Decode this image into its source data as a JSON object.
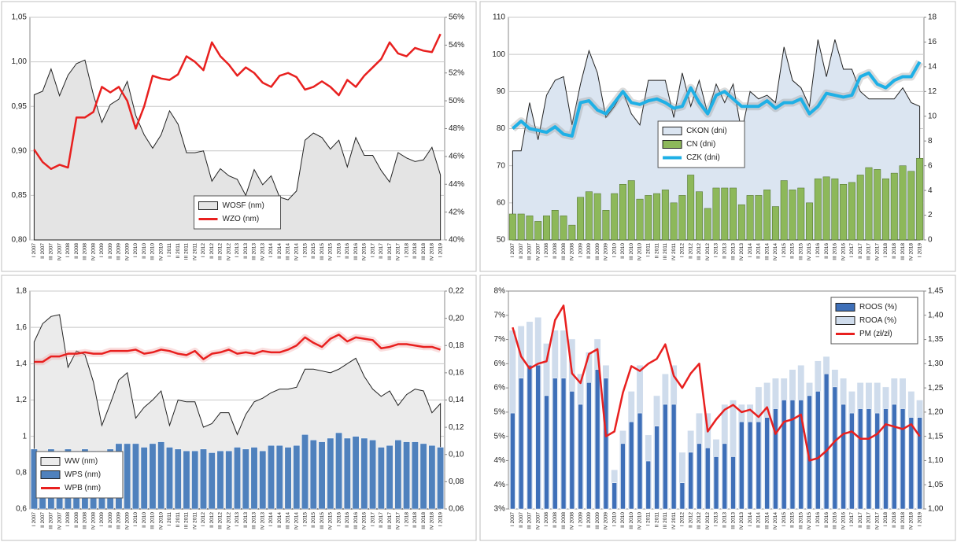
{
  "chart_data": [
    {
      "type": "combo",
      "legend": "bottom-center",
      "categories": [
        "I 2007",
        "II 2007",
        "III 2007",
        "IV 2007",
        "I 2008",
        "II 2008",
        "III 2008",
        "IV 2008",
        "I 2009",
        "II 2009",
        "III 2009",
        "IV 2009",
        "I 2010",
        "II 2010",
        "III 2010",
        "IV 2010",
        "I 2011",
        "II 2011",
        "III 2011",
        "IV 2011",
        "I 2012",
        "II 2012",
        "III 2012",
        "IV 2012",
        "I 2013",
        "II 2013",
        "III 2013",
        "IV 2013",
        "I 2014",
        "II 2014",
        "III 2014",
        "IV 2014",
        "I 2015",
        "II 2015",
        "III 2015",
        "IV 2015",
        "I 2016",
        "II 2016",
        "III 2016",
        "IV 2016",
        "I 2017",
        "II 2017",
        "III 2017",
        "IV 2017",
        "I 2018",
        "II 2018",
        "III 2018",
        "IV 2018",
        "I 2019"
      ],
      "ylim": [
        0.8,
        1.05
      ],
      "yticks": [
        {
          "value": 0.8,
          "label": "0,80"
        },
        {
          "value": 0.85,
          "label": "0,85"
        },
        {
          "value": 0.9,
          "label": "0,90"
        },
        {
          "value": 0.95,
          "label": "0,95"
        },
        {
          "value": 1.0,
          "label": "1,00"
        },
        {
          "value": 1.05,
          "label": "1,05"
        }
      ],
      "y2lim": [
        40,
        56
      ],
      "y2ticks": [
        {
          "value": 40,
          "label": "40%"
        },
        {
          "value": 42,
          "label": "42%"
        },
        {
          "value": 44,
          "label": "44%"
        },
        {
          "value": 46,
          "label": "46%"
        },
        {
          "value": 48,
          "label": "48%"
        },
        {
          "value": 50,
          "label": "50%"
        },
        {
          "value": 52,
          "label": "52%"
        },
        {
          "value": 54,
          "label": "54%"
        },
        {
          "value": 56,
          "label": "56%"
        }
      ],
      "grid": true,
      "series": [
        {
          "name": "WOSF (nm)",
          "type": "area",
          "color": "#e4e4e4",
          "values": [
            0.963,
            0.967,
            0.992,
            0.962,
            0.985,
            0.998,
            1.002,
            0.963,
            0.932,
            0.952,
            0.958,
            0.978,
            0.94,
            0.918,
            0.903,
            0.918,
            0.945,
            0.93,
            0.898,
            0.898,
            0.9,
            0.866,
            0.88,
            0.872,
            0.868,
            0.85,
            0.879,
            0.862,
            0.872,
            0.848,
            0.845,
            0.855,
            0.912,
            0.92,
            0.915,
            0.902,
            0.912,
            0.882,
            0.915,
            0.895,
            0.895,
            0.878,
            0.865,
            0.898,
            0.892,
            0.888,
            0.89,
            0.904,
            0.873
          ]
        },
        {
          "name": "WZO (nm)",
          "type": "line",
          "color": "#e8201f",
          "axis": "y2",
          "values": [
            46.5,
            45.6,
            45.1,
            45.4,
            45.2,
            48.8,
            48.8,
            49.2,
            51.0,
            50.6,
            51.0,
            50.0,
            48.0,
            49.6,
            51.8,
            51.6,
            51.5,
            51.9,
            53.2,
            52.8,
            52.2,
            54.2,
            53.2,
            52.6,
            51.8,
            52.4,
            52.0,
            51.3,
            51.0,
            51.8,
            52.0,
            51.7,
            50.8,
            51.0,
            51.4,
            51.0,
            50.4,
            51.5,
            51.0,
            51.8,
            52.4,
            53.0,
            54.2,
            53.4,
            53.2,
            53.8,
            53.6,
            53.5,
            54.8
          ]
        }
      ]
    },
    {
      "type": "combo",
      "legend": "center-right",
      "categories": [
        "I 2007",
        "II 2007",
        "III 2007",
        "IV 2007",
        "I 2008",
        "II 2008",
        "III 2008",
        "IV 2008",
        "I 2009",
        "II 2009",
        "III 2009",
        "IV 2009",
        "I 2010",
        "II 2010",
        "III 2010",
        "IV 2010",
        "I 2011",
        "II 2011",
        "III 2011",
        "IV 2011",
        "I 2012",
        "II 2012",
        "III 2012",
        "IV 2012",
        "I 2013",
        "II 2013",
        "III 2013",
        "IV 2013",
        "I 2014",
        "II 2014",
        "III 2014",
        "IV 2014",
        "I 2015",
        "II 2015",
        "III 2015",
        "IV 2015",
        "I 2016",
        "II 2016",
        "III 2016",
        "IV 2016",
        "I 2017",
        "II 2017",
        "III 2017",
        "IV 2017",
        "I 2018",
        "II 2018",
        "III 2018",
        "IV 2018",
        "I 2019"
      ],
      "ylim": [
        50,
        110
      ],
      "yticks": [
        50,
        60,
        70,
        80,
        90,
        100,
        110
      ],
      "y2lim": [
        0,
        18
      ],
      "y2ticks": [
        0,
        2,
        4,
        6,
        8,
        10,
        12,
        14,
        16,
        18
      ],
      "grid": true,
      "series": [
        {
          "name": "CKON (dni)",
          "type": "area",
          "color": "#dbe5f1",
          "values": [
            74,
            74,
            87,
            77,
            89,
            93,
            94,
            81,
            92,
            101,
            95,
            83,
            86,
            90,
            84,
            81,
            93,
            93,
            93,
            83,
            95,
            86,
            93,
            84,
            92,
            87,
            92,
            79,
            90,
            88,
            89,
            87,
            102,
            93,
            91,
            86,
            104,
            94,
            104,
            96,
            96,
            90,
            88,
            88,
            88,
            88,
            91,
            87,
            86
          ]
        },
        {
          "name": "CN (dni)",
          "type": "bar",
          "color": "#8db85a",
          "values": [
            57,
            57,
            56.5,
            55,
            56.5,
            58,
            56.5,
            54,
            61.5,
            63,
            62.5,
            58,
            62.5,
            65,
            66,
            61,
            62,
            62.5,
            63.5,
            60,
            62,
            67.5,
            63,
            58.5,
            64,
            64,
            64,
            59.5,
            62,
            62,
            63.5,
            59,
            66,
            63.5,
            64,
            60,
            66.5,
            67,
            66.5,
            65,
            65.5,
            67.5,
            69.5,
            69,
            66.5,
            68,
            70,
            68.5,
            72
          ]
        },
        {
          "name": "CZK (dni)",
          "type": "line",
          "color": "#1fb0e6",
          "values": [
            80,
            82,
            80,
            79.5,
            79,
            80.5,
            78.5,
            78,
            87,
            87.5,
            85,
            84,
            87,
            90,
            87,
            86.5,
            87.5,
            88,
            87,
            85.5,
            86,
            91,
            87,
            84,
            89,
            90,
            88,
            86,
            86,
            86,
            87.5,
            85.5,
            87,
            87,
            88,
            84,
            86,
            89.5,
            89,
            88.5,
            89,
            94,
            95,
            92,
            91,
            93,
            94,
            94,
            98
          ]
        }
      ]
    },
    {
      "type": "combo",
      "legend": "bottom-left",
      "categories": [
        "I 2007",
        "II 2007",
        "III 2007",
        "IV 2007",
        "I 2008",
        "II 2008",
        "III 2008",
        "IV 2008",
        "I 2009",
        "II 2009",
        "III 2009",
        "IV 2009",
        "I 2010",
        "II 2010",
        "III 2010",
        "IV 2010",
        "I 2011",
        "II 2011",
        "III 2011",
        "IV 2011",
        "I 2012",
        "II 2012",
        "III 2012",
        "IV 2012",
        "I 2013",
        "II 2013",
        "III 2013",
        "IV 2013",
        "I 2014",
        "II 2014",
        "III 2014",
        "IV 2014",
        "I 2015",
        "II 2015",
        "III 2015",
        "IV 2015",
        "I 2016",
        "II 2016",
        "III 2016",
        "IV 2016",
        "I 2017",
        "II 2017",
        "III 2017",
        "IV 2017",
        "I 2018",
        "II 2018",
        "III 2018",
        "IV 2018",
        "I 2019"
      ],
      "ylim": [
        0.6,
        1.8
      ],
      "yticks": [
        {
          "value": 0.6,
          "label": "0,6"
        },
        {
          "value": 0.8,
          "label": "0,8"
        },
        1,
        {
          "value": 1.2,
          "label": "1,2"
        },
        {
          "value": 1.4,
          "label": "1,4"
        },
        {
          "value": 1.6,
          "label": "1,6"
        },
        {
          "value": 1.8,
          "label": "1,8"
        }
      ],
      "y2lim": [
        0.06,
        0.22
      ],
      "y2ticks": [
        {
          "value": 0.06,
          "label": "0,06"
        },
        {
          "value": 0.08,
          "label": "0,08"
        },
        {
          "value": 0.1,
          "label": "0,10"
        },
        {
          "value": 0.12,
          "label": "0,12"
        },
        {
          "value": 0.14,
          "label": "0,14"
        },
        {
          "value": 0.16,
          "label": "0,16"
        },
        {
          "value": 0.18,
          "label": "0,18"
        },
        {
          "value": 0.2,
          "label": "0,20"
        },
        {
          "value": 0.22,
          "label": "0,22"
        }
      ],
      "grid": true,
      "series": [
        {
          "name": "WW (nm)",
          "type": "area",
          "color": "#ebebeb",
          "values": [
            1.52,
            1.62,
            1.66,
            1.67,
            1.38,
            1.47,
            1.45,
            1.3,
            1.06,
            1.18,
            1.31,
            1.35,
            1.1,
            1.16,
            1.2,
            1.25,
            1.06,
            1.2,
            1.19,
            1.19,
            1.05,
            1.07,
            1.13,
            1.13,
            1.01,
            1.12,
            1.19,
            1.21,
            1.24,
            1.26,
            1.26,
            1.27,
            1.37,
            1.37,
            1.36,
            1.35,
            1.37,
            1.4,
            1.43,
            1.33,
            1.26,
            1.22,
            1.25,
            1.17,
            1.23,
            1.26,
            1.25,
            1.13,
            1.18
          ]
        },
        {
          "name": "WPS (nm)",
          "type": "bar",
          "color": "#4f81bd",
          "values": [
            0.93,
            0.91,
            0.93,
            0.92,
            0.93,
            0.92,
            0.93,
            0.92,
            0.91,
            0.93,
            0.96,
            0.96,
            0.96,
            0.94,
            0.96,
            0.97,
            0.94,
            0.93,
            0.92,
            0.92,
            0.93,
            0.91,
            0.92,
            0.92,
            0.94,
            0.93,
            0.94,
            0.92,
            0.95,
            0.95,
            0.94,
            0.95,
            1.01,
            0.98,
            0.97,
            0.99,
            1.02,
            0.99,
            1.0,
            0.99,
            0.98,
            0.94,
            0.95,
            0.98,
            0.97,
            0.97,
            0.96,
            0.95,
            0.94
          ]
        },
        {
          "name": "WPB (nm)",
          "type": "line",
          "color": "#e8201f",
          "axis": "y2",
          "values": [
            0.168,
            0.168,
            0.172,
            0.172,
            0.174,
            0.174,
            0.175,
            0.174,
            0.174,
            0.176,
            0.176,
            0.176,
            0.177,
            0.174,
            0.175,
            0.177,
            0.176,
            0.174,
            0.173,
            0.176,
            0.17,
            0.174,
            0.175,
            0.177,
            0.174,
            0.175,
            0.174,
            0.176,
            0.175,
            0.175,
            0.177,
            0.18,
            0.186,
            0.182,
            0.179,
            0.185,
            0.188,
            0.183,
            0.186,
            0.185,
            0.184,
            0.178,
            0.179,
            0.181,
            0.181,
            0.18,
            0.179,
            0.179,
            0.177
          ]
        }
      ]
    },
    {
      "type": "combo",
      "legend": "top-right",
      "categories": [
        "I 2007",
        "II 2007",
        "III 2007",
        "IV 2007",
        "I 2008",
        "II 2008",
        "III 2008",
        "IV 2008",
        "I 2009",
        "II 2009",
        "III 2009",
        "IV 2009",
        "I 2010",
        "II 2010",
        "III 2010",
        "IV 2010",
        "I 2011",
        "II 2011",
        "III 2011",
        "IV 2011",
        "I 2012",
        "II 2012",
        "III 2012",
        "IV 2012",
        "I 2013",
        "II 2013",
        "III 2013",
        "IV 2013",
        "I 2014",
        "II 2014",
        "III 2014",
        "IV 2014",
        "I 2015",
        "II 2015",
        "III 2015",
        "IV 2015",
        "I 2016",
        "II 2016",
        "III 2016",
        "IV 2016",
        "I 2017",
        "II 2017",
        "III 2017",
        "IV 2017",
        "I 2018",
        "II 2018",
        "III 2018",
        "IV 2018",
        "I 2019"
      ],
      "ylim": [
        3,
        8
      ],
      "yticks": [
        {
          "value": 3,
          "label": "3%"
        },
        {
          "value": 3.556,
          "label": "4%"
        },
        {
          "value": 4.111,
          "label": "4%"
        },
        {
          "value": 4.667,
          "label": "5%"
        },
        {
          "value": 5.222,
          "label": "5%"
        },
        {
          "value": 5.778,
          "label": "6%"
        },
        {
          "value": 6.333,
          "label": "6%"
        },
        {
          "value": 6.889,
          "label": "7%"
        },
        {
          "value": 7.444,
          "label": "7%"
        },
        {
          "value": 8,
          "label": "8%"
        }
      ],
      "y2lim": [
        1.0,
        1.45
      ],
      "y2ticks": [
        {
          "value": 1.0,
          "label": "1,00"
        },
        {
          "value": 1.05,
          "label": "1,05"
        },
        {
          "value": 1.1,
          "label": "1,10"
        },
        {
          "value": 1.15,
          "label": "1,15"
        },
        {
          "value": 1.2,
          "label": "1,20"
        },
        {
          "value": 1.25,
          "label": "1,25"
        },
        {
          "value": 1.3,
          "label": "1,30"
        },
        {
          "value": 1.35,
          "label": "1,35"
        },
        {
          "value": 1.4,
          "label": "1,40"
        },
        {
          "value": 1.45,
          "label": "1,45"
        }
      ],
      "grid": false,
      "series": [
        {
          "name": "ROOS (%)",
          "type": "bar",
          "color": "#3e6fb8",
          "values": [
            5.2,
            6.0,
            6.3,
            6.3,
            5.6,
            6.0,
            6.0,
            5.7,
            5.4,
            5.9,
            6.2,
            6.0,
            3.6,
            4.5,
            5.0,
            5.2,
            4.1,
            4.9,
            5.4,
            5.4,
            3.6,
            4.3,
            4.5,
            4.4,
            4.2,
            4.5,
            4.2,
            5.0,
            5.0,
            5.0,
            5.1,
            5.3,
            5.5,
            5.5,
            5.5,
            5.6,
            5.7,
            6.1,
            5.8,
            5.4,
            5.2,
            5.3,
            5.3,
            5.2,
            5.3,
            5.4,
            5.3,
            5.1,
            5.1
          ]
        },
        {
          "name": "ROOA (%)",
          "type": "bar",
          "color": "#cfdcec",
          "values": [
            7.1,
            7.2,
            7.3,
            7.4,
            6.8,
            7.1,
            7.1,
            6.9,
            6.1,
            6.6,
            6.9,
            6.3,
            3.9,
            4.8,
            5.7,
            6.3,
            4.7,
            5.6,
            6.1,
            6.3,
            4.3,
            4.8,
            5.2,
            5.2,
            4.6,
            5.4,
            5.5,
            5.4,
            5.4,
            5.8,
            5.9,
            6.0,
            6.0,
            6.2,
            6.3,
            5.9,
            6.4,
            6.5,
            6.2,
            6.0,
            5.7,
            5.9,
            5.9,
            5.9,
            5.8,
            6.0,
            6.0,
            5.7,
            5.5
          ]
        },
        {
          "name": "PM (zł/zł)",
          "type": "line",
          "color": "#e8201f",
          "axis": "y2",
          "values": [
            1.375,
            1.315,
            1.29,
            1.3,
            1.305,
            1.39,
            1.42,
            1.28,
            1.26,
            1.32,
            1.33,
            1.15,
            1.16,
            1.24,
            1.295,
            1.285,
            1.3,
            1.31,
            1.34,
            1.275,
            1.25,
            1.28,
            1.3,
            1.16,
            1.185,
            1.205,
            1.215,
            1.2,
            1.205,
            1.19,
            1.21,
            1.155,
            1.18,
            1.185,
            1.195,
            1.1,
            1.105,
            1.12,
            1.14,
            1.155,
            1.16,
            1.145,
            1.145,
            1.155,
            1.175,
            1.17,
            1.165,
            1.175,
            1.15
          ]
        }
      ]
    }
  ]
}
